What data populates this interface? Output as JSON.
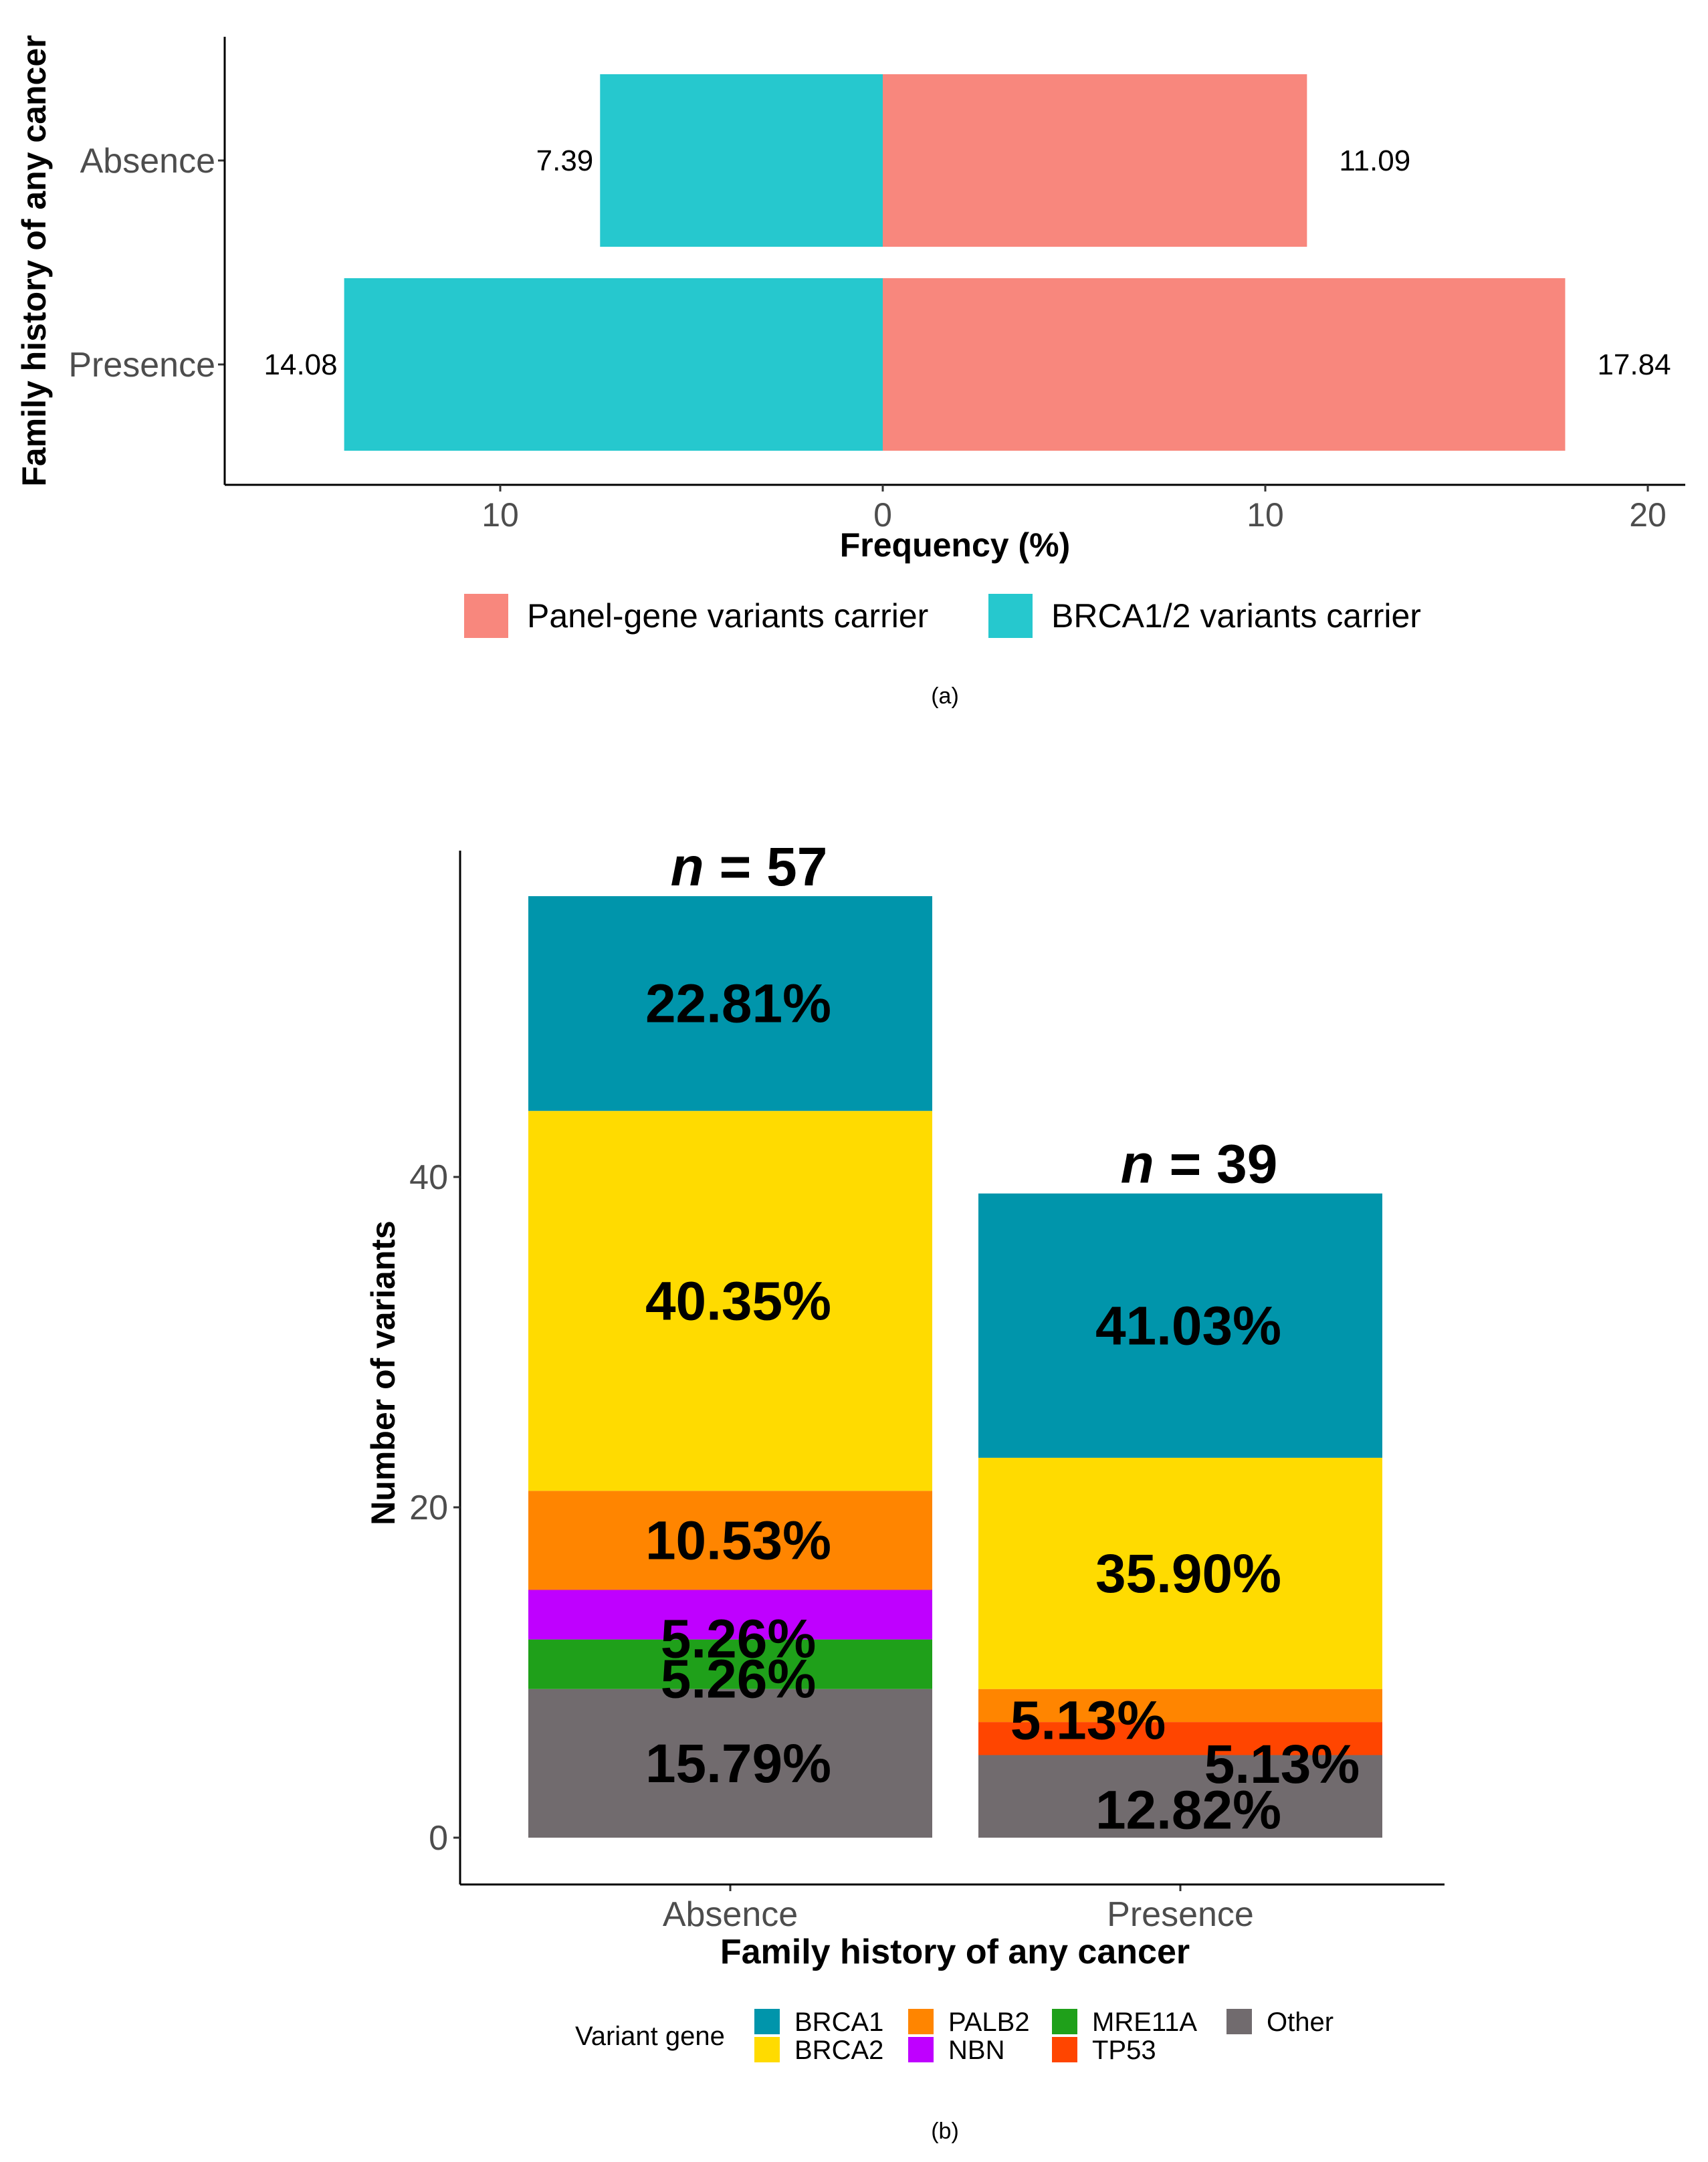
{
  "chart_data": [
    {
      "id": "a",
      "type": "bar",
      "orientation": "horizontal-diverging",
      "caption": "(a)",
      "categories": [
        "Absence",
        "Presence"
      ],
      "series": [
        {
          "name": "Panel-gene variants carrier",
          "color": "#F8877D",
          "side": "right",
          "values": [
            11.09,
            17.84
          ],
          "labels": [
            "11.09",
            "17.84"
          ]
        },
        {
          "name": "BRCA1/2 variants carrier",
          "color": "#26C8CE",
          "side": "left",
          "values": [
            7.39,
            14.08
          ],
          "labels": [
            "7.39",
            "14.08"
          ]
        }
      ],
      "xlabel": "Frequency (%)",
      "ylabel": "Family history of any cancer",
      "xlim": [
        -17.3,
        21
      ],
      "xticks": [
        -10,
        0,
        10,
        20
      ],
      "xtick_labels": [
        "10",
        "0",
        "10",
        "20"
      ],
      "legend": [
        "Panel-gene variants carrier",
        "BRCA1/2 variants carrier"
      ],
      "legend_position": "bottom"
    },
    {
      "id": "b",
      "type": "bar",
      "orientation": "vertical-stacked",
      "caption": "(b)",
      "categories": [
        "Absence",
        "Presence"
      ],
      "totals": [
        57,
        39
      ],
      "total_labels": [
        "57",
        "39"
      ],
      "total_prefix": "n",
      "total_eq": "=",
      "series": [
        {
          "name": "Other",
          "color": "#716B6E",
          "values": [
            9,
            5
          ],
          "labels": [
            "15.79%",
            "12.82%"
          ]
        },
        {
          "name": "MRE11A",
          "color": "#1FA01A",
          "values": [
            3,
            0
          ],
          "labels": [
            "5.26%",
            ""
          ]
        },
        {
          "name": "NBN",
          "color": "#BF00FF",
          "values": [
            3,
            0
          ],
          "labels": [
            "5.26%",
            ""
          ]
        },
        {
          "name": "TP53",
          "color": "#FF4500",
          "values": [
            0,
            2
          ],
          "labels": [
            "",
            "5.13%"
          ]
        },
        {
          "name": "PALB2",
          "color": "#FF8500",
          "values": [
            6,
            2
          ],
          "labels": [
            "10.53%",
            "5.13%"
          ]
        },
        {
          "name": "BRCA2",
          "color": "#FFDB00",
          "values": [
            23,
            14
          ],
          "labels": [
            "40.35%",
            "35.90%"
          ]
        },
        {
          "name": "BRCA1",
          "color": "#0095AB",
          "values": [
            13,
            16
          ],
          "labels": [
            "22.81%",
            "41.03%"
          ]
        }
      ],
      "xlabel": "Family history of any cancer",
      "ylabel": "Number of variants",
      "ylim": [
        0,
        59.7
      ],
      "yticks": [
        0,
        20,
        40
      ],
      "ytick_labels": [
        "0",
        "20",
        "40"
      ],
      "legend_title": "Variant gene",
      "legend": [
        "BRCA1",
        "BRCA2",
        "PALB2",
        "NBN",
        "MRE11A",
        "TP53",
        "Other"
      ],
      "legend_position": "bottom"
    }
  ]
}
